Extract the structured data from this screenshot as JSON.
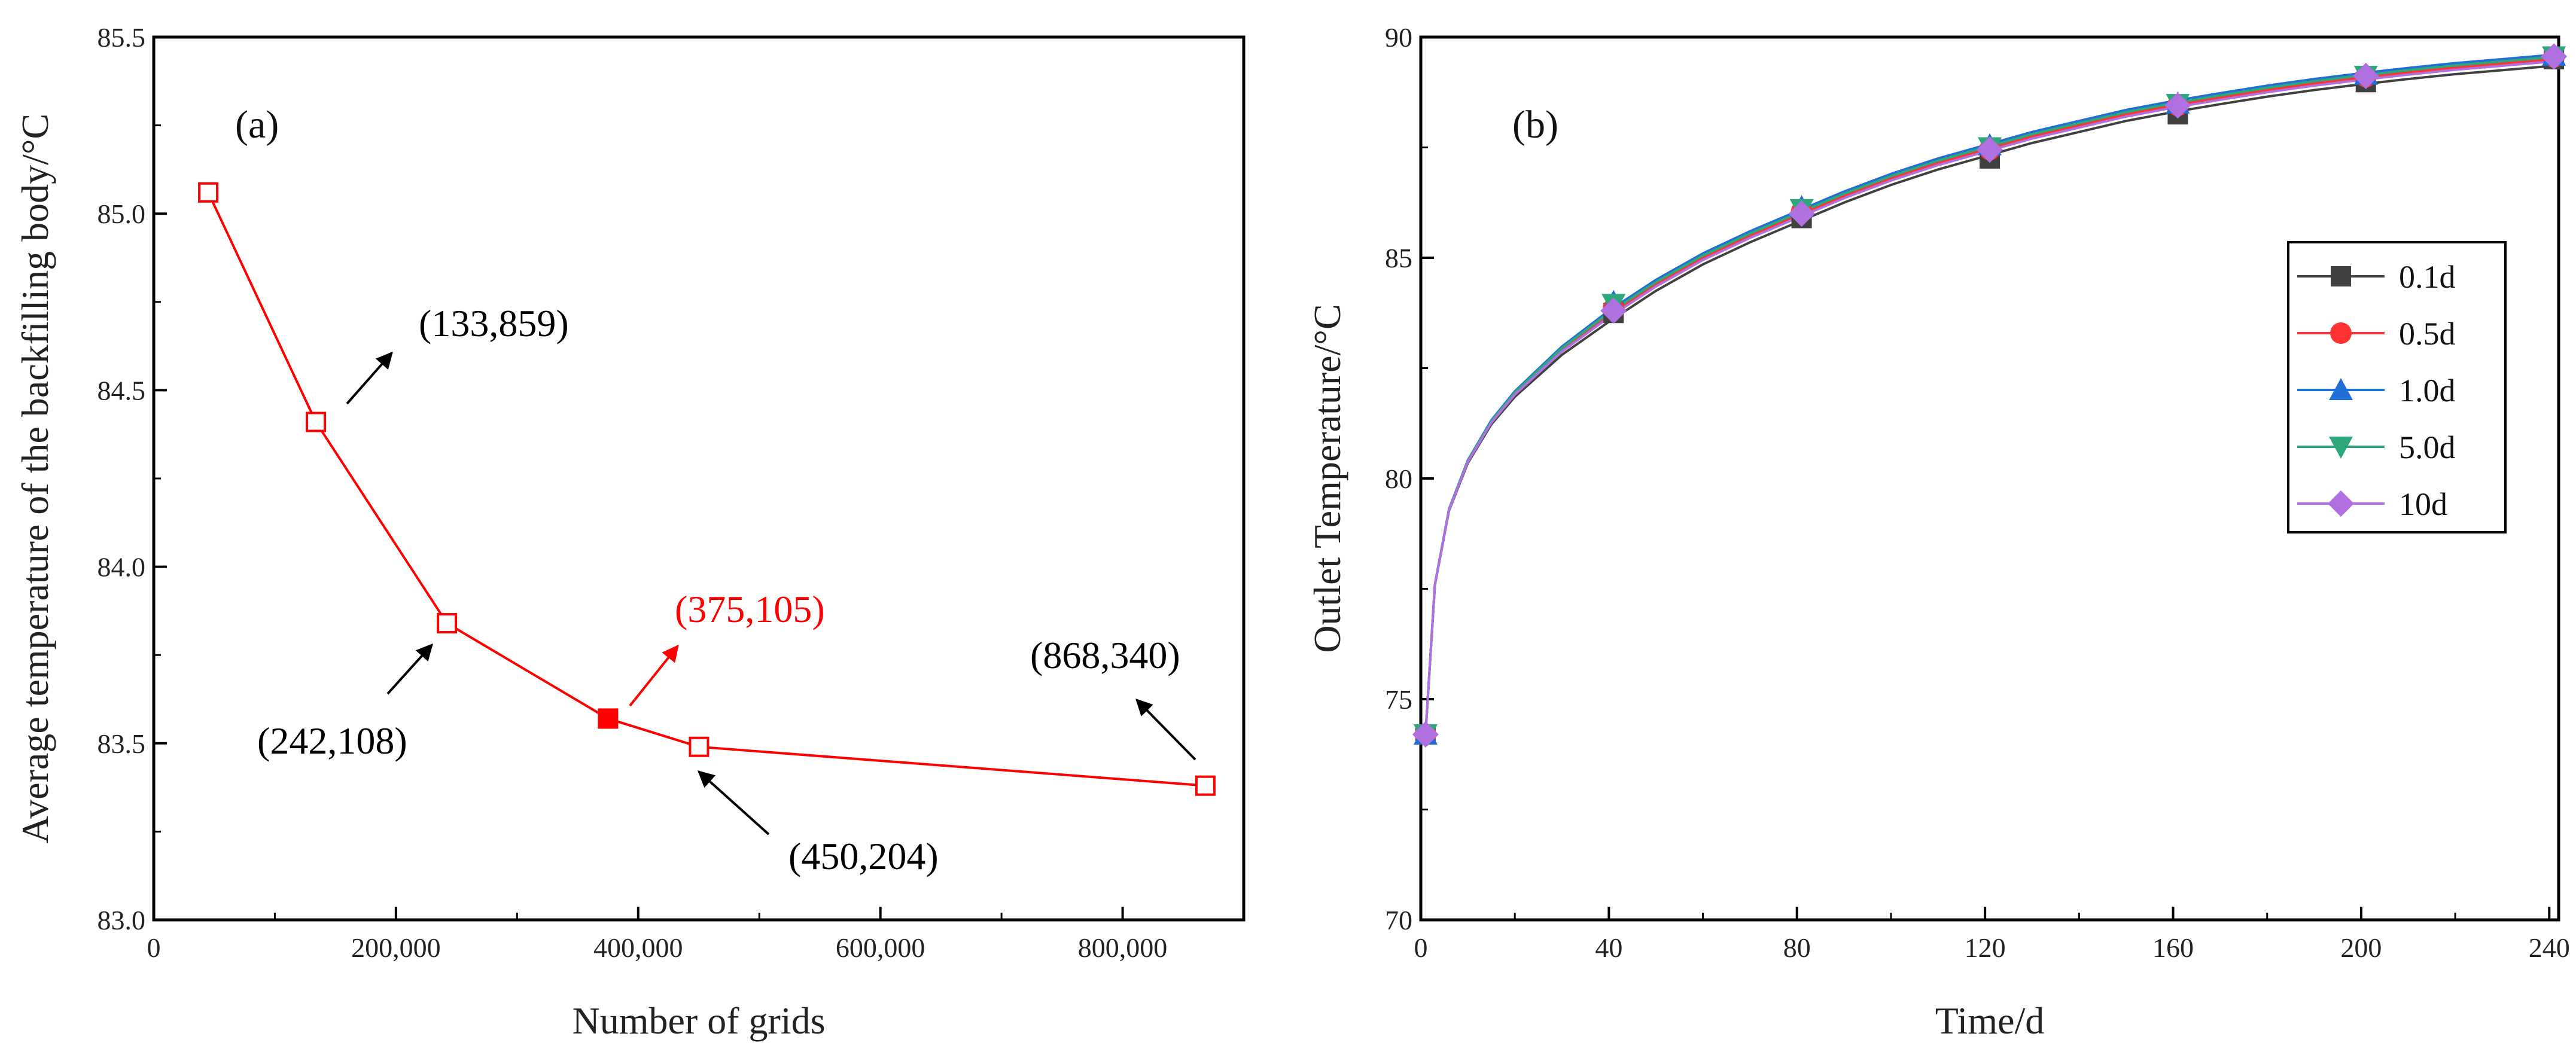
{
  "chart_data": [
    {
      "id": "a",
      "type": "line",
      "panel_label": "(a)",
      "title": "",
      "xlabel": "Number of grids",
      "ylabel": "Average temperature of the backfilling body/°C",
      "xlim": [
        0,
        900000
      ],
      "ylim": [
        83.0,
        85.5
      ],
      "xticks": [
        0,
        200000,
        400000,
        600000,
        800000
      ],
      "xtick_labels": [
        "0",
        "200,000",
        "400,000",
        "600,000",
        "800,000"
      ],
      "yticks": [
        83.0,
        83.5,
        84.0,
        84.5,
        85.0,
        85.5
      ],
      "ytick_labels": [
        "83.0",
        "83.5",
        "84.0",
        "84.5",
        "85.0",
        "85.5"
      ],
      "color": "#ff0000",
      "series": [
        {
          "name": "grid independence",
          "x": [
            45000,
            133859,
            242108,
            375105,
            450204,
            868340
          ],
          "y": [
            85.06,
            84.41,
            83.84,
            83.57,
            83.49,
            83.38
          ],
          "highlight_index": 3
        }
      ],
      "annotations": [
        {
          "text": "(133,859)",
          "color": "#000000"
        },
        {
          "text": "(242,108)",
          "color": "#000000"
        },
        {
          "text": "(375,105)",
          "color": "#ff0000"
        },
        {
          "text": "(450,204)",
          "color": "#000000"
        },
        {
          "text": "(868,340)",
          "color": "#000000"
        }
      ]
    },
    {
      "id": "b",
      "type": "line",
      "panel_label": "(b)",
      "title": "",
      "xlabel": "Time/d",
      "ylabel": "Outlet Temperature/°C",
      "xlim": [
        0,
        242
      ],
      "ylim": [
        70,
        90
      ],
      "xticks": [
        0,
        40,
        80,
        120,
        160,
        200,
        240
      ],
      "xtick_labels": [
        "0",
        "40",
        "80",
        "120",
        "160",
        "200",
        "240"
      ],
      "yticks": [
        70,
        75,
        80,
        85,
        90
      ],
      "ytick_labels": [
        "70",
        "75",
        "80",
        "85",
        "90"
      ],
      "legend_position": "right",
      "curve": {
        "x": [
          1,
          3,
          6,
          10,
          15,
          20,
          30,
          40,
          50,
          60,
          70,
          80,
          90,
          100,
          110,
          120,
          130,
          140,
          150,
          160,
          170,
          180,
          190,
          200,
          210,
          220,
          230,
          241
        ],
        "y": [
          74.2,
          77.6,
          79.3,
          80.4,
          81.3,
          81.95,
          82.95,
          83.75,
          84.45,
          85.05,
          85.55,
          86.0,
          86.45,
          86.85,
          87.2,
          87.5,
          87.8,
          88.05,
          88.3,
          88.5,
          88.68,
          88.85,
          89.0,
          89.13,
          89.25,
          89.36,
          89.45,
          89.55
        ]
      },
      "series": [
        {
          "name": "0.1d",
          "color": "#404040",
          "marker": "square",
          "x": [
            1,
            41,
            81,
            121,
            161,
            201,
            241
          ],
          "y": [
            74.2,
            83.75,
            85.9,
            87.25,
            88.25,
            88.98,
            89.5
          ],
          "offset": -0.2
        },
        {
          "name": "0.5d",
          "color": "#ff3333",
          "marker": "circle",
          "x": [
            1,
            41,
            81,
            121,
            161,
            201,
            241
          ],
          "y": [
            74.2,
            83.85,
            86.05,
            87.45,
            88.45,
            89.1,
            89.55
          ],
          "offset": -0.05
        },
        {
          "name": "1.0d",
          "color": "#1f6fd6",
          "marker": "triangle",
          "x": [
            1,
            41,
            81,
            121,
            161,
            201,
            241
          ],
          "y": [
            74.2,
            84.0,
            86.15,
            87.55,
            88.5,
            89.15,
            89.58
          ],
          "offset": 0.05
        },
        {
          "name": "5.0d",
          "color": "#2ca87a",
          "marker": "triangle-down",
          "x": [
            1,
            41,
            81,
            121,
            161,
            201,
            241
          ],
          "y": [
            74.2,
            83.95,
            86.1,
            87.5,
            88.48,
            89.12,
            89.56
          ],
          "offset": 0.0
        },
        {
          "name": "10d",
          "color": "#b070e0",
          "marker": "diamond",
          "x": [
            1,
            41,
            81,
            121,
            161,
            201,
            241
          ],
          "y": [
            74.2,
            83.8,
            86.0,
            87.45,
            88.45,
            89.12,
            89.56
          ],
          "offset": -0.1
        }
      ]
    }
  ]
}
